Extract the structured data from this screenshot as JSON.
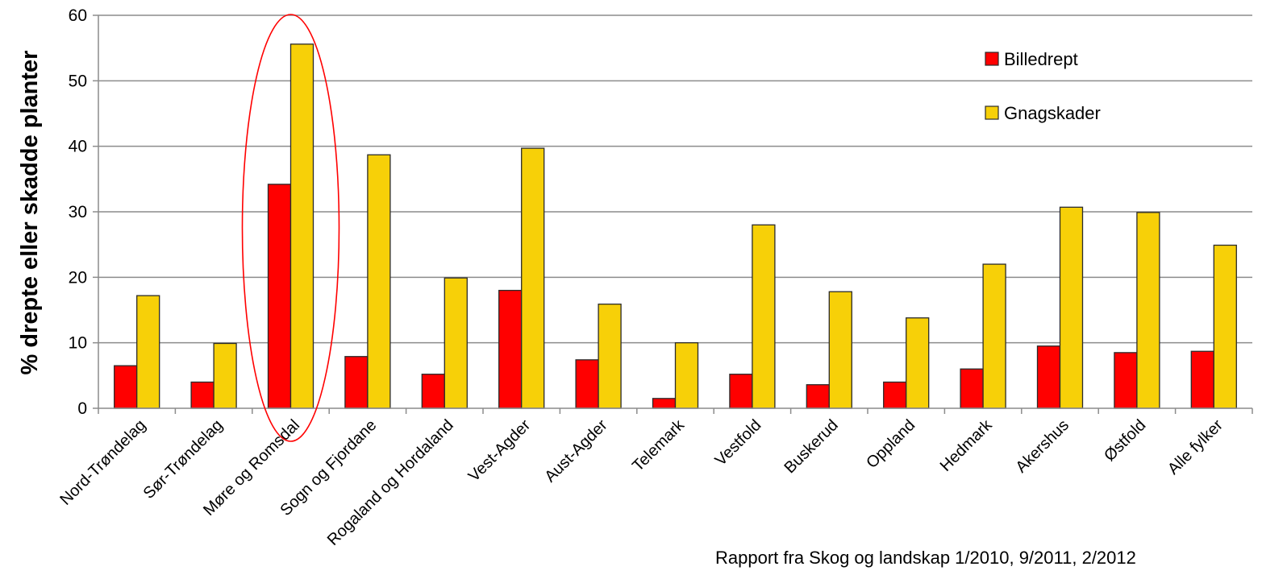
{
  "chart_data": {
    "type": "bar",
    "title": "",
    "xlabel": "",
    "ylabel": "% drepte eller skadde planter",
    "ylim": [
      0,
      60
    ],
    "yticks": [
      0,
      10,
      20,
      30,
      40,
      50,
      60
    ],
    "grid": true,
    "legend_position": "top-right",
    "categories": [
      "Nord-Trøndelag",
      "Sør-Trøndelag",
      "Møre og Romsdal",
      "Sogn og Fjordane",
      "Rogaland og Hordaland",
      "Vest-Agder",
      "Aust-Agder",
      "Telemark",
      "Vestfold",
      "Buskerud",
      "Oppland",
      "Hedmark",
      "Akershus",
      "Østfold",
      "Alle fylker"
    ],
    "series": [
      {
        "name": "Billedrept",
        "color": "#ff0000",
        "values": [
          6.5,
          4.0,
          34.2,
          7.9,
          5.2,
          18.0,
          7.4,
          1.5,
          5.2,
          3.6,
          4.0,
          6.0,
          9.5,
          8.5,
          8.7
        ]
      },
      {
        "name": "Gnagskader",
        "color": "#f7d008",
        "values": [
          17.2,
          9.9,
          55.6,
          38.7,
          19.9,
          39.7,
          15.9,
          10.0,
          28.0,
          17.8,
          13.8,
          22.0,
          30.7,
          29.9,
          24.9
        ]
      }
    ],
    "highlight": {
      "category": "Møre og Romsdal",
      "color": "#ff0000",
      "shape": "ellipse"
    },
    "source_note": "Rapport fra Skog og landskap 1/2010, 9/2011, 2/2012"
  }
}
